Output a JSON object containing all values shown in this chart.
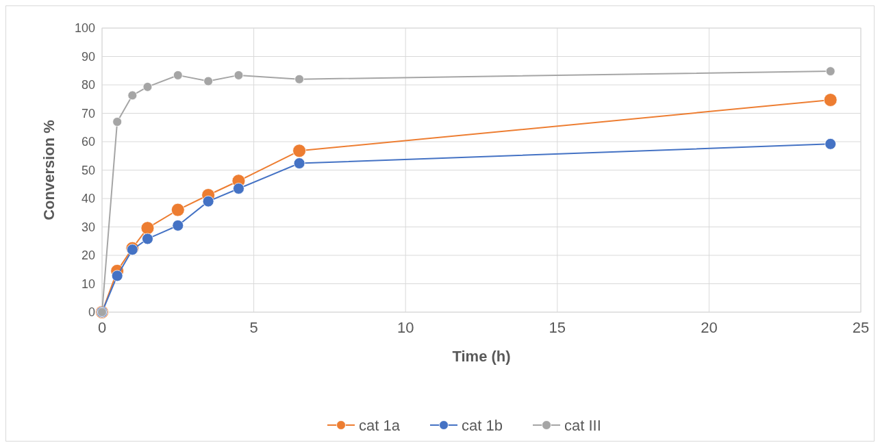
{
  "chart_data": {
    "type": "line",
    "xlabel": "Time (h)",
    "ylabel": "Conversion %",
    "x": [
      0,
      0.5,
      1,
      1.5,
      2.5,
      3.5,
      4.5,
      6.5,
      24
    ],
    "series": [
      {
        "name": "cat 1a",
        "color": "#ed7d31",
        "values": [
          0,
          14.5,
          22.5,
          29.6,
          36,
          41.2,
          46.2,
          56.8,
          74.7
        ]
      },
      {
        "name": "cat 1b",
        "color": "#4472c4",
        "values": [
          0,
          12.8,
          22,
          25.8,
          30.5,
          39,
          43.5,
          52.4,
          59.2
        ]
      },
      {
        "name": "cat III",
        "color": "#a5a5a5",
        "values": [
          0,
          67,
          76.3,
          79.3,
          83.4,
          81.3,
          83.4,
          82,
          84.8
        ]
      }
    ],
    "xlim": [
      0,
      25
    ],
    "xticks": [
      0,
      5,
      10,
      15,
      20,
      25
    ],
    "ylim": [
      0,
      100
    ],
    "yticks": [
      0,
      10,
      20,
      30,
      40,
      50,
      60,
      70,
      80,
      90,
      100
    ],
    "grid": true,
    "legend": "bottom",
    "marker": "circle",
    "line_style": "solid"
  }
}
